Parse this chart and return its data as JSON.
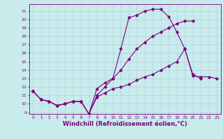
{
  "title": "",
  "xlabel": "Windchill (Refroidissement éolien,°C)",
  "background_color": "#c8ecec",
  "line_color": "#800080",
  "xlim": [
    -0.5,
    23.5
  ],
  "ylim": [
    8.8,
    21.8
  ],
  "yticks": [
    9,
    10,
    11,
    12,
    13,
    14,
    15,
    16,
    17,
    18,
    19,
    20,
    21
  ],
  "xticks": [
    0,
    1,
    2,
    3,
    4,
    5,
    6,
    7,
    8,
    9,
    10,
    11,
    12,
    13,
    14,
    15,
    16,
    17,
    18,
    19,
    20,
    21,
    22,
    23
  ],
  "series1_x": [
    0,
    1,
    2,
    3,
    4,
    5,
    6,
    7,
    8,
    9,
    10,
    11,
    12,
    13,
    14,
    15,
    16,
    17,
    18,
    19,
    20,
    21
  ],
  "series1_y": [
    11.5,
    10.5,
    10.3,
    9.8,
    10.0,
    10.3,
    10.3,
    8.8,
    11.8,
    12.5,
    13.0,
    16.5,
    20.2,
    20.5,
    21.0,
    21.2,
    21.2,
    20.3,
    18.5,
    16.5,
    13.5,
    13.0
  ],
  "series2_x": [
    0,
    1,
    2,
    3,
    4,
    5,
    6,
    7,
    8,
    9,
    10,
    11,
    12,
    13,
    14,
    15,
    16,
    17,
    18,
    19,
    20
  ],
  "series2_y": [
    11.5,
    10.5,
    10.3,
    9.8,
    10.0,
    10.3,
    10.3,
    8.8,
    11.0,
    12.0,
    13.0,
    14.0,
    15.3,
    16.5,
    17.3,
    18.0,
    18.5,
    19.0,
    19.5,
    19.8,
    19.8
  ],
  "series3_x": [
    0,
    1,
    2,
    3,
    4,
    5,
    6,
    7,
    8,
    9,
    10,
    11,
    12,
    13,
    14,
    15,
    16,
    17,
    18,
    19,
    20,
    21,
    22,
    23
  ],
  "series3_y": [
    11.5,
    10.5,
    10.3,
    9.8,
    10.0,
    10.3,
    10.3,
    8.8,
    10.8,
    11.3,
    11.8,
    12.0,
    12.3,
    12.8,
    13.2,
    13.5,
    14.0,
    14.5,
    15.0,
    16.5,
    13.3,
    13.2,
    13.2,
    13.0
  ],
  "grid_color": "#b0c8d8",
  "spine_color": "#800080",
  "tick_color": "#800080",
  "xlabel_fontsize": 6.0,
  "tick_fontsize": 4.5
}
